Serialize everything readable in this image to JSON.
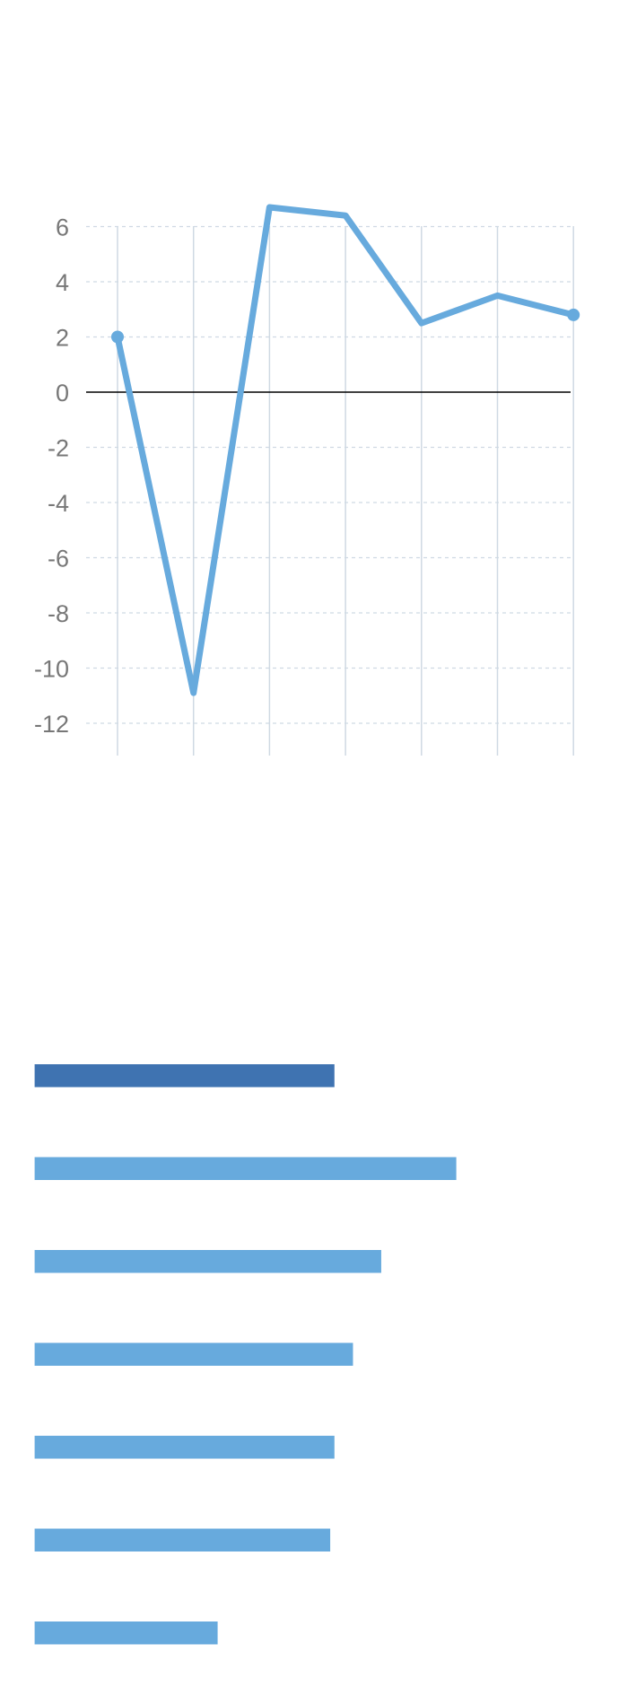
{
  "chart_data": [
    {
      "type": "line",
      "x": [
        1,
        2,
        3,
        4,
        5,
        6,
        7
      ],
      "values": [
        2.0,
        -10.9,
        6.7,
        6.4,
        2.5,
        3.5,
        2.8
      ],
      "ylim": [
        -12,
        6
      ],
      "yticks": [
        "6",
        "4",
        "2",
        "0",
        "-2",
        "-4",
        "-6",
        "-8",
        "-10",
        "-12"
      ],
      "ytick_values": [
        6,
        4,
        2,
        0,
        -2,
        -4,
        -6,
        -8,
        -10,
        -12
      ],
      "grid": "horizontal dashed, vertical solid",
      "zero_line": true,
      "colors": {
        "line": "#67aadd",
        "grid": "#cfd9e3",
        "zero": "#000000",
        "tick_text": "#777777"
      }
    },
    {
      "type": "bar",
      "orientation": "horizontal",
      "values_relative": [
        0.711,
        1.0,
        0.822,
        0.755,
        0.711,
        0.701,
        0.434
      ],
      "highlight_index": 0,
      "colors": {
        "highlight": "#3f73b1",
        "bar": "#67aadd"
      }
    }
  ]
}
